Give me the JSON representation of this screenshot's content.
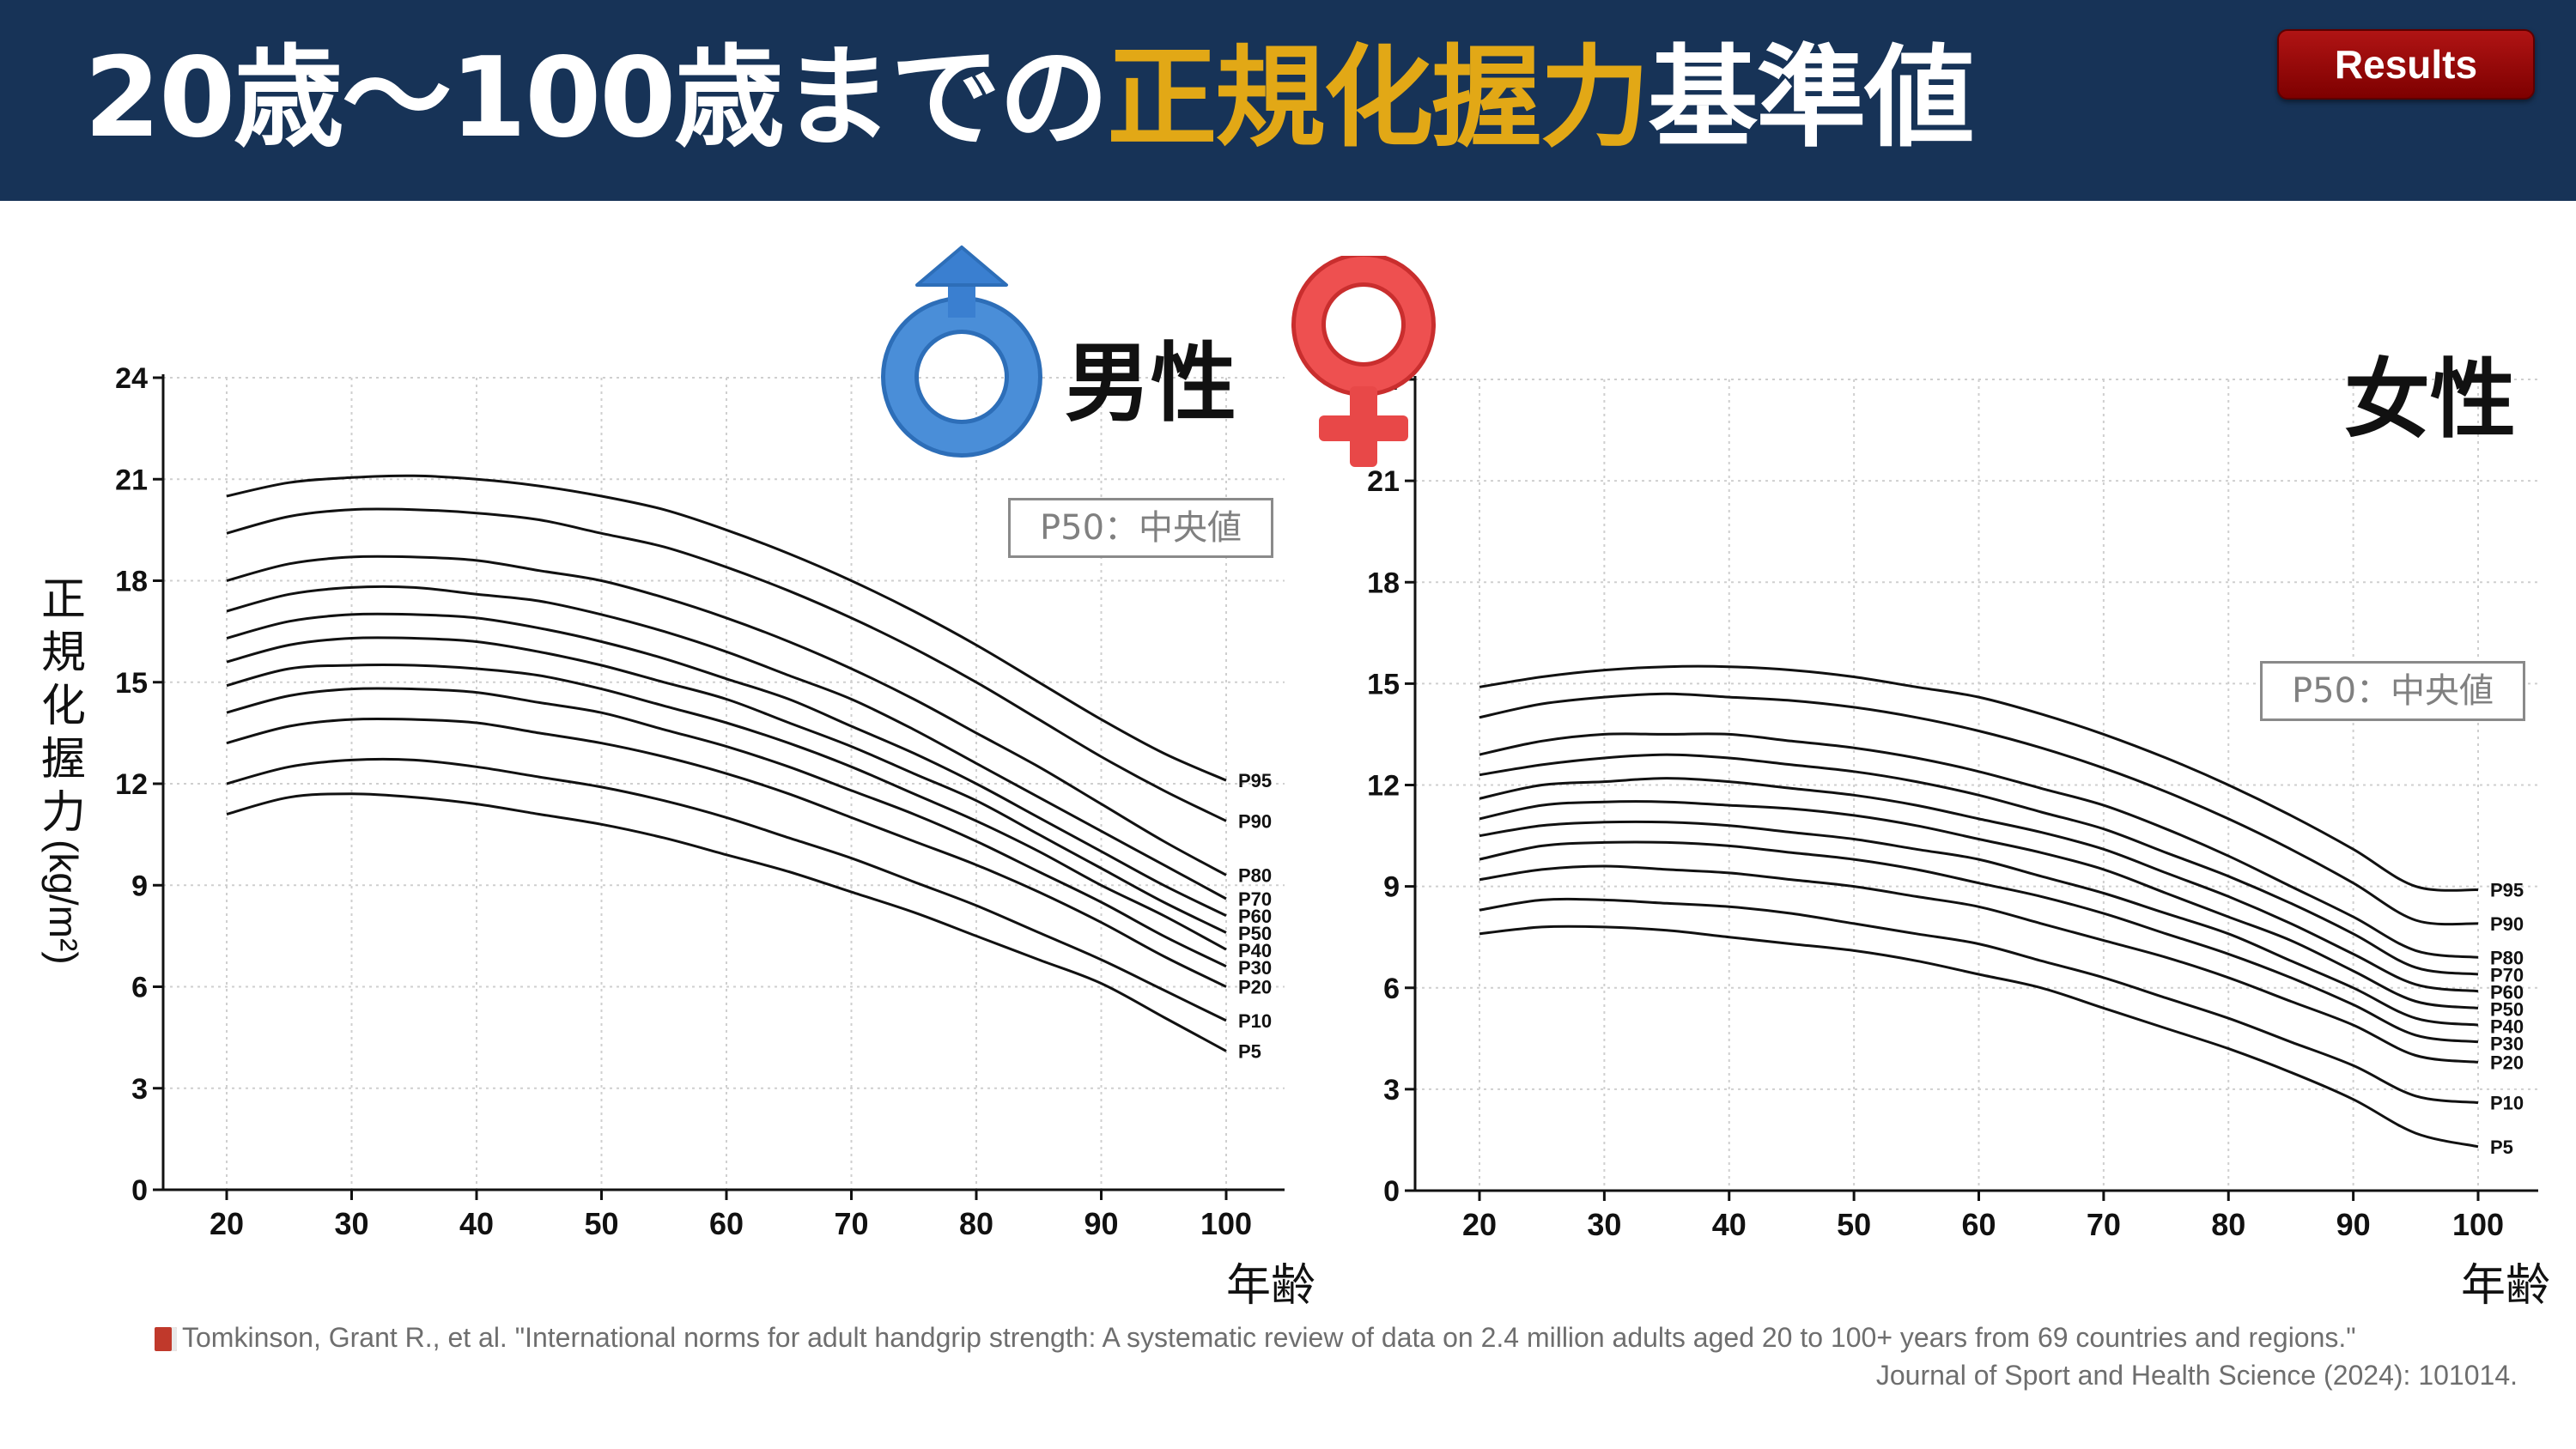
{
  "title": {
    "part1": "20歳〜100歳までの",
    "highlight": "正規化握力",
    "part2": "基準値",
    "highlight_color": "#E2A816"
  },
  "header_bg": "#173357",
  "badge": {
    "label": "Results",
    "color": "#9E0A0A"
  },
  "y_axis_label": {
    "chars": [
      "正",
      "規",
      "化",
      "握",
      "力"
    ],
    "unit": "(kg/m²)"
  },
  "x_axis_label": "年齢",
  "p50_note": "P50：中央値",
  "citation": {
    "line1": "Tomkinson, Grant R., et al. \"International norms for adult handgrip strength: A systematic review of data on 2.4 million adults aged 20 to 100+ years from 69 countries and regions.\"",
    "line2": "Journal of Sport and Health Science (2024): 101014.",
    "icon": "book-icon"
  },
  "chart_data": [
    {
      "type": "line",
      "sex_label": "男性",
      "icon": "male-symbol-icon",
      "icon_color": "#3A7FD0",
      "xlabel": "年齢",
      "ylabel": "正規化握力 (kg/m²)",
      "xlim": [
        20,
        100
      ],
      "ylim": [
        0,
        24
      ],
      "x_ticks": [
        20,
        30,
        40,
        50,
        60,
        70,
        80,
        90,
        100
      ],
      "y_ticks": [
        0,
        3,
        6,
        9,
        12,
        15,
        18,
        21,
        24
      ],
      "grid": true,
      "x": [
        20,
        25,
        30,
        35,
        40,
        45,
        50,
        55,
        60,
        65,
        70,
        75,
        80,
        85,
        90,
        95,
        100
      ],
      "series": [
        {
          "name": "P95",
          "values": [
            20.5,
            20.9,
            21.05,
            21.1,
            21.0,
            20.8,
            20.5,
            20.1,
            19.5,
            18.8,
            18.0,
            17.1,
            16.1,
            15.0,
            13.9,
            12.9,
            12.1
          ]
        },
        {
          "name": "P90",
          "values": [
            19.4,
            19.9,
            20.1,
            20.1,
            20.0,
            19.8,
            19.4,
            19.0,
            18.4,
            17.7,
            16.9,
            16.0,
            15.0,
            13.9,
            12.8,
            11.8,
            10.9
          ]
        },
        {
          "name": "P80",
          "values": [
            18.0,
            18.5,
            18.7,
            18.7,
            18.6,
            18.3,
            18.0,
            17.5,
            16.9,
            16.2,
            15.4,
            14.5,
            13.5,
            12.5,
            11.4,
            10.3,
            9.3
          ]
        },
        {
          "name": "P70",
          "values": [
            17.1,
            17.6,
            17.8,
            17.8,
            17.6,
            17.4,
            17.0,
            16.5,
            15.9,
            15.2,
            14.5,
            13.6,
            12.6,
            11.6,
            10.6,
            9.6,
            8.6
          ]
        },
        {
          "name": "P60",
          "values": [
            16.3,
            16.8,
            17.0,
            17.0,
            16.9,
            16.6,
            16.2,
            15.7,
            15.1,
            14.5,
            13.7,
            12.9,
            12.0,
            11.0,
            10.0,
            9.0,
            8.1
          ]
        },
        {
          "name": "P50",
          "values": [
            15.6,
            16.1,
            16.3,
            16.3,
            16.2,
            15.9,
            15.5,
            15.0,
            14.5,
            13.8,
            13.1,
            12.3,
            11.5,
            10.5,
            9.5,
            8.5,
            7.6
          ]
        },
        {
          "name": "P40",
          "values": [
            14.9,
            15.4,
            15.5,
            15.5,
            15.4,
            15.2,
            14.8,
            14.3,
            13.8,
            13.2,
            12.5,
            11.7,
            10.9,
            10.0,
            9.0,
            8.1,
            7.1
          ]
        },
        {
          "name": "P30",
          "values": [
            14.1,
            14.6,
            14.8,
            14.8,
            14.7,
            14.4,
            14.1,
            13.6,
            13.1,
            12.5,
            11.8,
            11.1,
            10.3,
            9.4,
            8.5,
            7.5,
            6.6
          ]
        },
        {
          "name": "P20",
          "values": [
            13.2,
            13.7,
            13.9,
            13.9,
            13.8,
            13.5,
            13.2,
            12.8,
            12.3,
            11.7,
            11.0,
            10.3,
            9.6,
            8.8,
            7.9,
            6.9,
            6.0
          ]
        },
        {
          "name": "P10",
          "values": [
            12.0,
            12.5,
            12.7,
            12.7,
            12.5,
            12.2,
            11.9,
            11.5,
            11.0,
            10.4,
            9.8,
            9.1,
            8.4,
            7.6,
            6.8,
            5.9,
            5.0
          ]
        },
        {
          "name": "P5",
          "values": [
            11.1,
            11.6,
            11.7,
            11.6,
            11.4,
            11.1,
            10.8,
            10.4,
            9.9,
            9.4,
            8.8,
            8.2,
            7.5,
            6.8,
            6.1,
            5.1,
            4.1
          ]
        }
      ]
    },
    {
      "type": "line",
      "sex_label": "女性",
      "icon": "female-symbol-icon",
      "icon_color": "#E84848",
      "xlabel": "年齢",
      "ylabel": "正規化握力 (kg/m²)",
      "xlim": [
        20,
        100
      ],
      "ylim": [
        0,
        24
      ],
      "x_ticks": [
        20,
        30,
        40,
        50,
        60,
        70,
        80,
        90,
        100
      ],
      "y_ticks": [
        0,
        3,
        6,
        9,
        12,
        15,
        18,
        21,
        24
      ],
      "grid": true,
      "x": [
        20,
        25,
        30,
        35,
        40,
        45,
        50,
        55,
        60,
        65,
        70,
        75,
        80,
        85,
        90,
        95,
        100
      ],
      "series": [
        {
          "name": "P95",
          "values": [
            14.9,
            15.2,
            15.4,
            15.5,
            15.5,
            15.4,
            15.2,
            14.9,
            14.6,
            14.1,
            13.5,
            12.8,
            12.0,
            11.1,
            10.1,
            9.0,
            8.9
          ]
        },
        {
          "name": "P90",
          "values": [
            14.0,
            14.4,
            14.6,
            14.7,
            14.6,
            14.5,
            14.3,
            14.0,
            13.6,
            13.1,
            12.5,
            11.8,
            11.0,
            10.1,
            9.1,
            8.0,
            7.9
          ]
        },
        {
          "name": "P80",
          "values": [
            12.9,
            13.3,
            13.5,
            13.5,
            13.5,
            13.3,
            13.1,
            12.8,
            12.4,
            11.9,
            11.4,
            10.7,
            9.9,
            9.0,
            8.1,
            7.1,
            6.9
          ]
        },
        {
          "name": "P70",
          "values": [
            12.3,
            12.6,
            12.8,
            12.9,
            12.8,
            12.6,
            12.4,
            12.1,
            11.7,
            11.2,
            10.7,
            10.0,
            9.3,
            8.5,
            7.6,
            6.6,
            6.4
          ]
        },
        {
          "name": "P60",
          "values": [
            11.6,
            12.0,
            12.1,
            12.2,
            12.1,
            11.9,
            11.7,
            11.4,
            11.0,
            10.6,
            10.1,
            9.4,
            8.7,
            7.9,
            7.0,
            6.1,
            5.9
          ]
        },
        {
          "name": "P50",
          "values": [
            11.0,
            11.4,
            11.5,
            11.5,
            11.4,
            11.3,
            11.1,
            10.8,
            10.4,
            10.0,
            9.5,
            8.8,
            8.1,
            7.4,
            6.5,
            5.6,
            5.4
          ]
        },
        {
          "name": "P40",
          "values": [
            10.5,
            10.8,
            10.9,
            10.9,
            10.8,
            10.6,
            10.4,
            10.1,
            9.8,
            9.3,
            8.8,
            8.2,
            7.6,
            6.8,
            6.0,
            5.1,
            4.9
          ]
        },
        {
          "name": "P30",
          "values": [
            9.8,
            10.2,
            10.3,
            10.3,
            10.2,
            10.0,
            9.8,
            9.5,
            9.1,
            8.7,
            8.2,
            7.6,
            7.0,
            6.3,
            5.5,
            4.6,
            4.4
          ]
        },
        {
          "name": "P20",
          "values": [
            9.2,
            9.5,
            9.6,
            9.5,
            9.4,
            9.2,
            9.0,
            8.7,
            8.4,
            7.9,
            7.4,
            6.9,
            6.3,
            5.6,
            4.9,
            4.0,
            3.8
          ]
        },
        {
          "name": "P10",
          "values": [
            8.3,
            8.6,
            8.6,
            8.5,
            8.4,
            8.2,
            7.9,
            7.6,
            7.3,
            6.8,
            6.3,
            5.7,
            5.1,
            4.4,
            3.7,
            2.8,
            2.6
          ]
        },
        {
          "name": "P5",
          "values": [
            7.6,
            7.8,
            7.8,
            7.7,
            7.5,
            7.3,
            7.1,
            6.8,
            6.4,
            6.0,
            5.4,
            4.8,
            4.2,
            3.5,
            2.7,
            1.7,
            1.3
          ]
        }
      ]
    }
  ]
}
